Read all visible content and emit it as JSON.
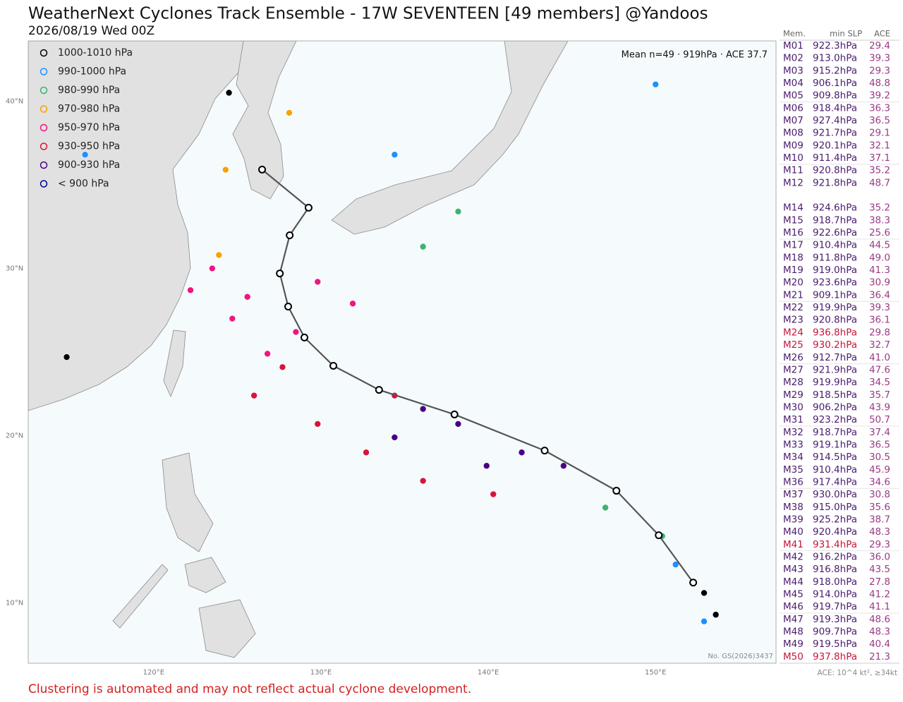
{
  "header": {
    "title": "WeatherNext Cyclones Track Ensemble - 17W SEVENTEEN [49 members] @Yandoos",
    "subtitle": "2026/08/19 Wed 00Z"
  },
  "map": {
    "lonlim": [
      112.5,
      157.2
    ],
    "latlim": [
      6.4,
      43.6
    ],
    "lonticks": [
      {
        "value": 120,
        "label": "120°E"
      },
      {
        "value": 130,
        "label": "130°E"
      },
      {
        "value": 140,
        "label": "140°E"
      },
      {
        "value": 150,
        "label": "150°E"
      }
    ],
    "latticks": [
      {
        "value": 10,
        "label": "10°N"
      },
      {
        "value": 20,
        "label": "20°N"
      },
      {
        "value": 30,
        "label": "30°N"
      },
      {
        "value": 40,
        "label": "40°N"
      }
    ],
    "legend": [
      {
        "label": "1000-1010 hPa",
        "color": "#000000"
      },
      {
        "label": "990-1000 hPa",
        "color": "#1e90ff"
      },
      {
        "label": "980-990 hPa",
        "color": "#3cb371"
      },
      {
        "label": "970-980 hPa",
        "color": "#f5a300"
      },
      {
        "label": "950-970 hPa",
        "color": "#f0157f"
      },
      {
        "label": "930-950 hPa",
        "color": "#d8143a"
      },
      {
        "label": "900-930 hPa",
        "color": "#4b0082"
      },
      {
        "label": "< 900 hPa",
        "color": "#00008b"
      }
    ],
    "mean_label": "Mean n=49 · 919hPa · ACE 37.7",
    "mean_track": {
      "lon": [
        152.25,
        150.19,
        147.66,
        143.37,
        137.98,
        133.47,
        130.74,
        129.01,
        128.04,
        127.54,
        128.13,
        129.26,
        126.48
      ],
      "lat": [
        11.22,
        14.05,
        16.71,
        19.11,
        21.27,
        22.74,
        24.18,
        25.87,
        27.72,
        29.7,
        31.98,
        33.63,
        35.91
      ]
    },
    "member_points": [
      {
        "band": 4,
        "lon": 123.5,
        "lat": 30.0
      },
      {
        "band": 4,
        "lon": 125.6,
        "lat": 28.3
      },
      {
        "band": 4,
        "lon": 128.5,
        "lat": 26.2
      },
      {
        "band": 4,
        "lon": 126.8,
        "lat": 24.9
      },
      {
        "band": 4,
        "lon": 124.7,
        "lat": 27.0
      },
      {
        "band": 4,
        "lon": 129.8,
        "lat": 29.2
      },
      {
        "band": 4,
        "lon": 131.9,
        "lat": 27.9
      },
      {
        "band": 4,
        "lon": 122.2,
        "lat": 28.7
      },
      {
        "band": 5,
        "lon": 126.0,
        "lat": 22.4
      },
      {
        "band": 5,
        "lon": 129.8,
        "lat": 20.7
      },
      {
        "band": 5,
        "lon": 132.7,
        "lat": 19.0
      },
      {
        "band": 5,
        "lon": 136.1,
        "lat": 17.3
      },
      {
        "band": 5,
        "lon": 140.3,
        "lat": 16.5
      },
      {
        "band": 5,
        "lon": 127.7,
        "lat": 24.1
      },
      {
        "band": 5,
        "lon": 134.4,
        "lat": 22.4
      },
      {
        "band": 6,
        "lon": 134.4,
        "lat": 19.9
      },
      {
        "band": 6,
        "lon": 138.2,
        "lat": 20.7
      },
      {
        "band": 6,
        "lon": 142.0,
        "lat": 19.0
      },
      {
        "band": 6,
        "lon": 144.5,
        "lat": 18.2
      },
      {
        "band": 6,
        "lon": 136.1,
        "lat": 21.6
      },
      {
        "band": 6,
        "lon": 139.9,
        "lat": 18.2
      },
      {
        "band": 2,
        "lon": 150.4,
        "lat": 14.0
      },
      {
        "band": 2,
        "lon": 147.0,
        "lat": 15.7
      },
      {
        "band": 2,
        "lon": 136.1,
        "lat": 31.3
      },
      {
        "band": 2,
        "lon": 138.2,
        "lat": 33.4
      },
      {
        "band": 3,
        "lon": 123.9,
        "lat": 30.8
      },
      {
        "band": 3,
        "lon": 124.3,
        "lat": 35.9
      },
      {
        "band": 3,
        "lon": 128.1,
        "lat": 39.3
      },
      {
        "band": 1,
        "lon": 152.9,
        "lat": 8.9
      },
      {
        "band": 1,
        "lon": 151.2,
        "lat": 12.3
      },
      {
        "band": 1,
        "lon": 150.0,
        "lat": 41.0
      },
      {
        "band": 1,
        "lon": 134.4,
        "lat": 36.8
      },
      {
        "band": 1,
        "lon": 115.9,
        "lat": 36.8
      },
      {
        "band": 0,
        "lon": 152.9,
        "lat": 10.6
      },
      {
        "band": 0,
        "lon": 153.6,
        "lat": 9.3
      },
      {
        "band": 0,
        "lon": 124.5,
        "lat": 40.5
      },
      {
        "band": 0,
        "lon": 114.8,
        "lat": 24.7
      }
    ],
    "approval_no": "No. GS(2026)3437"
  },
  "table": {
    "headers": [
      "Mem.",
      "min SLP",
      "ACE"
    ],
    "rows": [
      {
        "id": "M01",
        "min_slp": "922.3hPa",
        "ace": "29.4",
        "color": "#4b1c6e"
      },
      {
        "id": "M02",
        "min_slp": "913.0hPa",
        "ace": "39.3",
        "color": "#4b1c6e"
      },
      {
        "id": "M03",
        "min_slp": "915.2hPa",
        "ace": "29.3",
        "color": "#4b1c6e"
      },
      {
        "id": "M04",
        "min_slp": "906.1hPa",
        "ace": "48.8",
        "color": "#4b1c6e"
      },
      {
        "id": "M05",
        "min_slp": "909.8hPa",
        "ace": "39.2",
        "color": "#4b1c6e"
      },
      {
        "id": "M06",
        "min_slp": "918.4hPa",
        "ace": "36.3",
        "color": "#4b1c6e"
      },
      {
        "id": "M07",
        "min_slp": "927.4hPa",
        "ace": "36.5",
        "color": "#4b1c6e"
      },
      {
        "id": "M08",
        "min_slp": "921.7hPa",
        "ace": "29.1",
        "color": "#4b1c6e"
      },
      {
        "id": "M09",
        "min_slp": "920.1hPa",
        "ace": "32.1",
        "color": "#4b1c6e"
      },
      {
        "id": "M10",
        "min_slp": "911.4hPa",
        "ace": "37.1",
        "color": "#4b1c6e"
      },
      {
        "id": "M11",
        "min_slp": "920.8hPa",
        "ace": "35.2",
        "color": "#4b1c6e"
      },
      {
        "id": "M12",
        "min_slp": "921.8hPa",
        "ace": "48.7",
        "color": "#4b1c6e"
      },
      {
        "id": "M14",
        "min_slp": "924.6hPa",
        "ace": "35.2",
        "color": "#4b1c6e"
      },
      {
        "id": "M15",
        "min_slp": "918.7hPa",
        "ace": "38.3",
        "color": "#4b1c6e"
      },
      {
        "id": "M16",
        "min_slp": "922.6hPa",
        "ace": "25.6",
        "color": "#4b1c6e"
      },
      {
        "id": "M17",
        "min_slp": "910.4hPa",
        "ace": "44.5",
        "color": "#4b1c6e"
      },
      {
        "id": "M18",
        "min_slp": "911.8hPa",
        "ace": "49.0",
        "color": "#4b1c6e"
      },
      {
        "id": "M19",
        "min_slp": "919.0hPa",
        "ace": "41.3",
        "color": "#4b1c6e"
      },
      {
        "id": "M20",
        "min_slp": "923.6hPa",
        "ace": "30.9",
        "color": "#4b1c6e"
      },
      {
        "id": "M21",
        "min_slp": "909.1hPa",
        "ace": "36.4",
        "color": "#4b1c6e"
      },
      {
        "id": "M22",
        "min_slp": "919.9hPa",
        "ace": "39.3",
        "color": "#4b1c6e"
      },
      {
        "id": "M23",
        "min_slp": "920.8hPa",
        "ace": "36.1",
        "color": "#4b1c6e"
      },
      {
        "id": "M24",
        "min_slp": "936.8hPa",
        "ace": "29.8",
        "color": "#c8143a"
      },
      {
        "id": "M25",
        "min_slp": "930.2hPa",
        "ace": "32.7",
        "color": "#c8143a"
      },
      {
        "id": "M26",
        "min_slp": "912.7hPa",
        "ace": "41.0",
        "color": "#4b1c6e"
      },
      {
        "id": "M27",
        "min_slp": "921.9hPa",
        "ace": "47.6",
        "color": "#4b1c6e"
      },
      {
        "id": "M28",
        "min_slp": "919.9hPa",
        "ace": "34.5",
        "color": "#4b1c6e"
      },
      {
        "id": "M29",
        "min_slp": "918.5hPa",
        "ace": "35.7",
        "color": "#4b1c6e"
      },
      {
        "id": "M30",
        "min_slp": "906.2hPa",
        "ace": "43.9",
        "color": "#4b1c6e"
      },
      {
        "id": "M31",
        "min_slp": "923.2hPa",
        "ace": "50.7",
        "color": "#4b1c6e"
      },
      {
        "id": "M32",
        "min_slp": "918.7hPa",
        "ace": "37.4",
        "color": "#4b1c6e"
      },
      {
        "id": "M33",
        "min_slp": "919.1hPa",
        "ace": "36.5",
        "color": "#4b1c6e"
      },
      {
        "id": "M34",
        "min_slp": "914.5hPa",
        "ace": "30.5",
        "color": "#4b1c6e"
      },
      {
        "id": "M35",
        "min_slp": "910.4hPa",
        "ace": "45.9",
        "color": "#4b1c6e"
      },
      {
        "id": "M36",
        "min_slp": "917.4hPa",
        "ace": "34.6",
        "color": "#4b1c6e"
      },
      {
        "id": "M37",
        "min_slp": "930.0hPa",
        "ace": "30.8",
        "color": "#4b1c6e"
      },
      {
        "id": "M38",
        "min_slp": "915.0hPa",
        "ace": "35.6",
        "color": "#4b1c6e"
      },
      {
        "id": "M39",
        "min_slp": "925.2hPa",
        "ace": "38.7",
        "color": "#4b1c6e"
      },
      {
        "id": "M40",
        "min_slp": "920.4hPa",
        "ace": "48.3",
        "color": "#4b1c6e"
      },
      {
        "id": "M41",
        "min_slp": "931.4hPa",
        "ace": "29.3",
        "color": "#c8143a"
      },
      {
        "id": "M42",
        "min_slp": "916.2hPa",
        "ace": "36.0",
        "color": "#4b1c6e"
      },
      {
        "id": "M43",
        "min_slp": "916.8hPa",
        "ace": "43.5",
        "color": "#4b1c6e"
      },
      {
        "id": "M44",
        "min_slp": "918.0hPa",
        "ace": "27.8",
        "color": "#4b1c6e"
      },
      {
        "id": "M45",
        "min_slp": "914.0hPa",
        "ace": "41.2",
        "color": "#4b1c6e"
      },
      {
        "id": "M46",
        "min_slp": "919.7hPa",
        "ace": "41.1",
        "color": "#4b1c6e"
      },
      {
        "id": "M47",
        "min_slp": "919.3hPa",
        "ace": "48.6",
        "color": "#4b1c6e"
      },
      {
        "id": "M48",
        "min_slp": "909.7hPa",
        "ace": "48.3",
        "color": "#4b1c6e"
      },
      {
        "id": "M49",
        "min_slp": "919.5hPa",
        "ace": "40.4",
        "color": "#4b1c6e"
      },
      {
        "id": "M50",
        "min_slp": "937.8hPa",
        "ace": "21.3",
        "color": "#c8143a"
      }
    ],
    "footnote": "ACE: 10^4 kt², ≥34kt"
  },
  "footer": {
    "disclaimer": "Clustering is automated and may not reflect actual cyclone development."
  }
}
